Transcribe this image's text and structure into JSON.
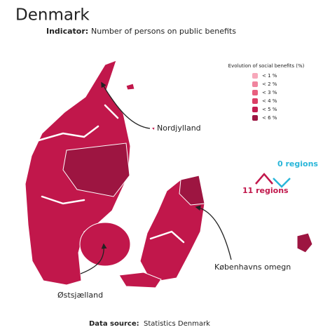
{
  "title": "Denmark",
  "indicator": {
    "label": "Indicator:",
    "text": "Number of persons on public benefits"
  },
  "legend": {
    "title": "Evolution of social benefits (%)",
    "items": [
      {
        "label": "< 1 %",
        "color": "#f7a8ba"
      },
      {
        "label": "< 2 %",
        "color": "#f0849e"
      },
      {
        "label": "< 3 %",
        "color": "#e8607f"
      },
      {
        "label": "< 4 %",
        "color": "#db3f66"
      },
      {
        "label": "< 5 %",
        "color": "#c41d50"
      },
      {
        "label": "< 6 %",
        "color": "#9c1642"
      }
    ]
  },
  "annotations": [
    {
      "label": "Nordjylland"
    },
    {
      "label": "Københavns omegn"
    },
    {
      "label": "Østsjælland"
    }
  ],
  "trend": {
    "down": "0 regions",
    "up": "11 regions"
  },
  "source": {
    "label": "Data source:",
    "text": "Statistics Denmark"
  }
}
